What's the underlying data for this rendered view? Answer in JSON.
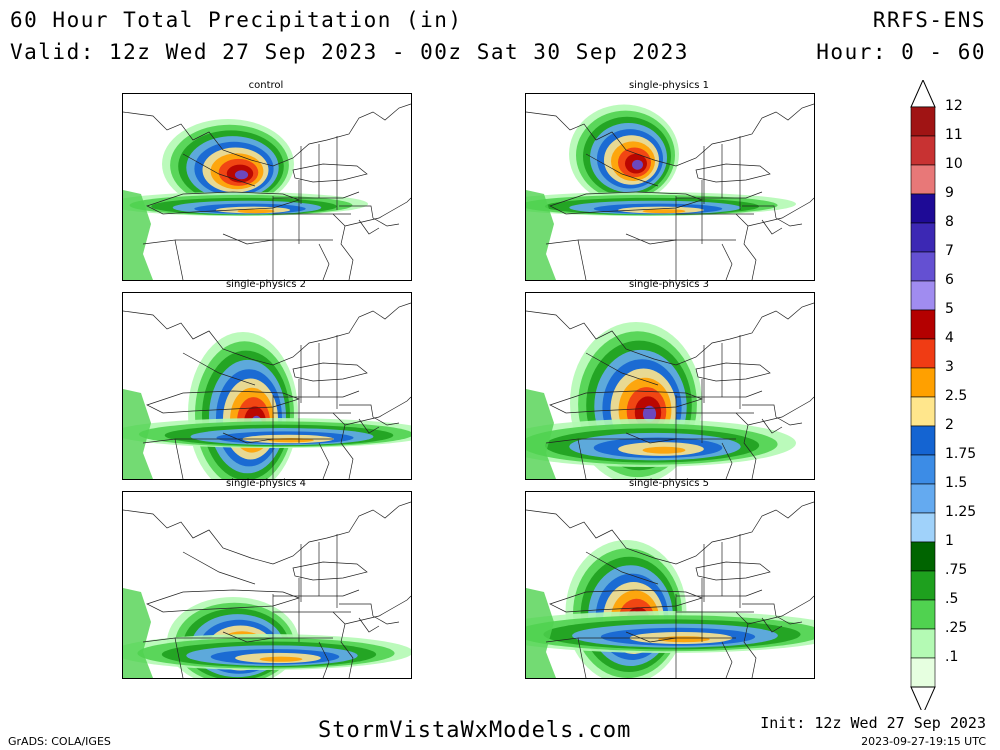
{
  "header": {
    "title": "60 Hour Total Precipitation (in)",
    "valid": "Valid: 12z Wed 27 Sep 2023 - 00z Sat 30 Sep 2023",
    "model": "RRFS-ENS",
    "hour": "Hour: 0 - 60"
  },
  "panels": [
    {
      "title": "control"
    },
    {
      "title": "single-physics 1"
    },
    {
      "title": "single-physics 2"
    },
    {
      "title": "single-physics 3"
    },
    {
      "title": "single-physics 4"
    },
    {
      "title": "single-physics 5"
    }
  ],
  "legend": {
    "labels": [
      "12",
      "11",
      "10",
      "9",
      "8",
      "7",
      "6",
      "5",
      "4",
      "3",
      "2.5",
      "2",
      "1.75",
      "1.5",
      "1.25",
      "1",
      ".75",
      ".5",
      ".25",
      ".1"
    ],
    "colors": [
      "#a01414",
      "#c83232",
      "#e87878",
      "#1e0a96",
      "#3c28b4",
      "#6450d2",
      "#a08cf0",
      "#b40000",
      "#f03c14",
      "#ffa000",
      "#ffe68c",
      "#1464d2",
      "#3c8ce6",
      "#64aaf0",
      "#a0d2fa",
      "#006400",
      "#1ea01e",
      "#50d250",
      "#b4fab4",
      "#e6ffe0"
    ]
  },
  "footer": {
    "site": "StormVistaWxModels.com",
    "init": "Init: 12z Wed 27 Sep 2023",
    "grads": "GrADS: COLA/IGES",
    "timestamp": "2023-09-27-19:15 UTC"
  }
}
